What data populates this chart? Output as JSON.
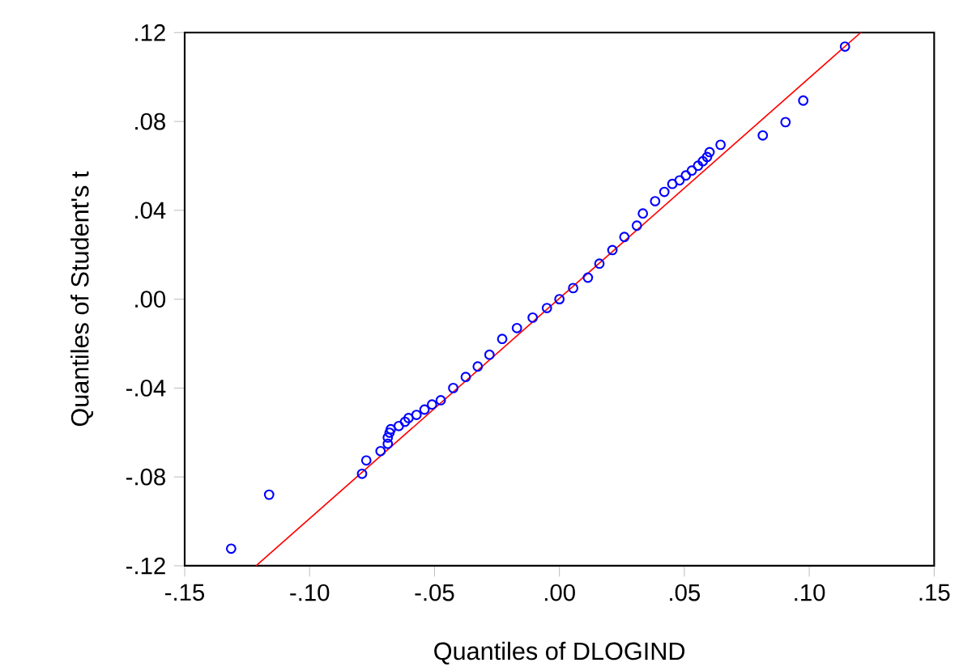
{
  "chart_data": {
    "type": "scatter",
    "xlabel": "Quantiles of DLOGIND",
    "ylabel": "Quantiles of Student's t",
    "xlim": [
      -0.15,
      0.15
    ],
    "ylim": [
      -0.12,
      0.12
    ],
    "xticks": [
      {
        "value": -0.15,
        "label": "-.15"
      },
      {
        "value": -0.1,
        "label": "-.10"
      },
      {
        "value": -0.05,
        "label": "-.05"
      },
      {
        "value": 0,
        "label": ".00"
      },
      {
        "value": 0.05,
        "label": ".05"
      },
      {
        "value": 0.1,
        "label": ".10"
      },
      {
        "value": 0.15,
        "label": ".15"
      }
    ],
    "yticks": [
      {
        "value": -0.12,
        "label": "-.12"
      },
      {
        "value": -0.08,
        "label": "-.08"
      },
      {
        "value": -0.04,
        "label": "-.04"
      },
      {
        "value": 0,
        "label": ".00"
      },
      {
        "value": 0.04,
        "label": ".04"
      },
      {
        "value": 0.08,
        "label": ".08"
      },
      {
        "value": 0.12,
        "label": ".12"
      }
    ],
    "series": [
      {
        "color": "#0000ff",
        "marker": "circle",
        "x": [
          -0.1314,
          -0.1162,
          -0.079,
          -0.0773,
          -0.0716,
          -0.0687,
          -0.0687,
          -0.068,
          -0.0675,
          -0.0643,
          -0.0618,
          -0.0604,
          -0.0572,
          -0.054,
          -0.051,
          -0.0475,
          -0.0425,
          -0.0375,
          -0.0327,
          -0.028,
          -0.0229,
          -0.017,
          -0.0107,
          -0.005,
          0,
          0.0055,
          0.0114,
          0.016,
          0.0212,
          0.026,
          0.031,
          0.0334,
          0.0383,
          0.042,
          0.0452,
          0.0481,
          0.0506,
          0.053,
          0.0555,
          0.0574,
          0.0591,
          0.0601,
          0.0645,
          0.0814,
          0.0905,
          0.0976,
          0.1143
        ],
        "values": [
          -0.1123,
          -0.088,
          -0.0786,
          -0.0726,
          -0.0684,
          -0.0651,
          -0.0623,
          -0.0601,
          -0.0585,
          -0.0571,
          -0.0552,
          -0.0535,
          -0.0521,
          -0.0497,
          -0.0474,
          -0.0455,
          -0.04,
          -0.035,
          -0.0303,
          -0.025,
          -0.0179,
          -0.013,
          -0.0083,
          -0.004,
          0,
          0.005,
          0.0097,
          0.016,
          0.0221,
          0.028,
          0.0331,
          0.0386,
          0.0441,
          0.0483,
          0.0519,
          0.0535,
          0.0557,
          0.0579,
          0.0601,
          0.0621,
          0.064,
          0.0662,
          0.0695,
          0.0737,
          0.0797,
          0.0894,
          0.1137
        ]
      },
      {
        "type": "line",
        "color": "#ff0000",
        "marker": "none",
        "x": [
          -0.1214,
          0.1206
        ],
        "values": [
          -0.12,
          0.12
        ]
      }
    ]
  }
}
